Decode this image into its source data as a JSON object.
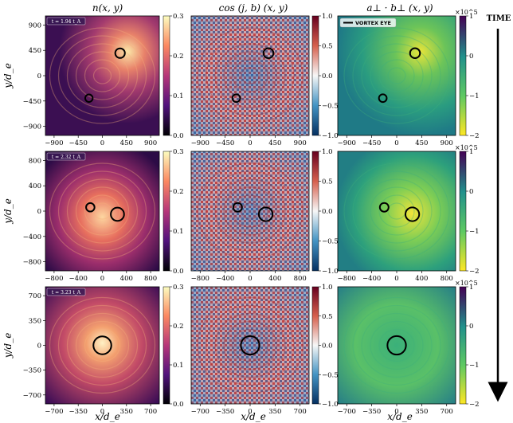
{
  "figure": {
    "column_titles": [
      "n(x, y)",
      "cos (j, b) (x, y)",
      "a⊥ · b⊥ (x, y)"
    ],
    "y_label": "y/d_e",
    "x_label": "x/d_e",
    "time_label": "TIME",
    "legend_label": "VORTEX EYE",
    "rows": [
      {
        "time_badge": "t = 1.94 t_A",
        "ticks": [
          "−900",
          "−450",
          "0",
          "450",
          "900"
        ],
        "circles": [
          {
            "x": 330,
            "y": 400,
            "r": 90
          },
          {
            "x": -250,
            "y": -400,
            "r": 70
          }
        ]
      },
      {
        "time_badge": "t = 2.32 t_A",
        "ticks": [
          "−800",
          "−400",
          "0",
          "400",
          "800"
        ],
        "circles": [
          {
            "x": 250,
            "y": -50,
            "r": 110
          },
          {
            "x": -200,
            "y": 60,
            "r": 70
          }
        ]
      },
      {
        "time_badge": "t = 3.23 t_A",
        "ticks": [
          "−700",
          "−350",
          "0",
          "350",
          "700"
        ],
        "circles": [
          {
            "x": 0,
            "y": 0,
            "r": 130
          }
        ]
      }
    ],
    "colorbars": {
      "density": {
        "ticks": [
          "0.0",
          "0.1",
          "0.2",
          "0.3"
        ],
        "range": [
          0.0,
          0.3
        ]
      },
      "cosine": {
        "ticks": [
          "1.0",
          "0.5",
          "0.0",
          "−0.5",
          "−1.0"
        ],
        "range": [
          -1.0,
          1.0
        ]
      },
      "product": {
        "ticks": [
          "1",
          "0",
          "−1",
          "−2"
        ],
        "exponent": "×10^5",
        "range": [
          -2,
          1
        ]
      }
    }
  }
}
